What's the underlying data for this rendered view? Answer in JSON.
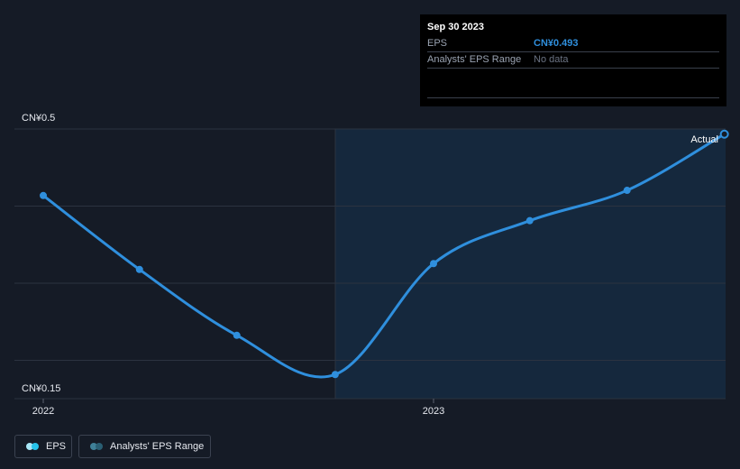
{
  "tooltip": {
    "date": "Sep 30 2023",
    "rows": [
      {
        "label": "EPS",
        "value": "CN¥0.493"
      },
      {
        "label": "Analysts' EPS Range",
        "value": "No data"
      }
    ]
  },
  "legend": {
    "eps_label": "EPS",
    "range_label": "Analysts' EPS Range"
  },
  "colors": {
    "background": "#151b26",
    "line": "#2f8fdd",
    "forecast_shade": "#15283d",
    "grid": "#2c3340",
    "legend_eps_dot_a": "#27c3ea",
    "legend_eps_dot_b": "#a8e7f7",
    "legend_range_dot_a": "#2a5f74",
    "legend_range_dot_b": "#3f8098"
  },
  "chart_data": {
    "type": "line",
    "x": [
      "2022-01-01",
      "2022-04-01",
      "2022-07-01",
      "2022-10-01",
      "2023-01-01",
      "2023-04-01",
      "2023-07-01",
      "2023-09-30"
    ],
    "series": [
      {
        "name": "EPS",
        "values": [
          0.41,
          0.31,
          0.221,
          0.168,
          0.318,
          0.376,
          0.417,
          0.493
        ]
      }
    ],
    "ylim": [
      0.15,
      0.5
    ],
    "y_tick_labels": [
      "CN¥0.5",
      "CN¥0.15"
    ],
    "x_tick_labels": [
      "2022",
      "2023"
    ],
    "annotation": "Actual",
    "grid": true
  }
}
